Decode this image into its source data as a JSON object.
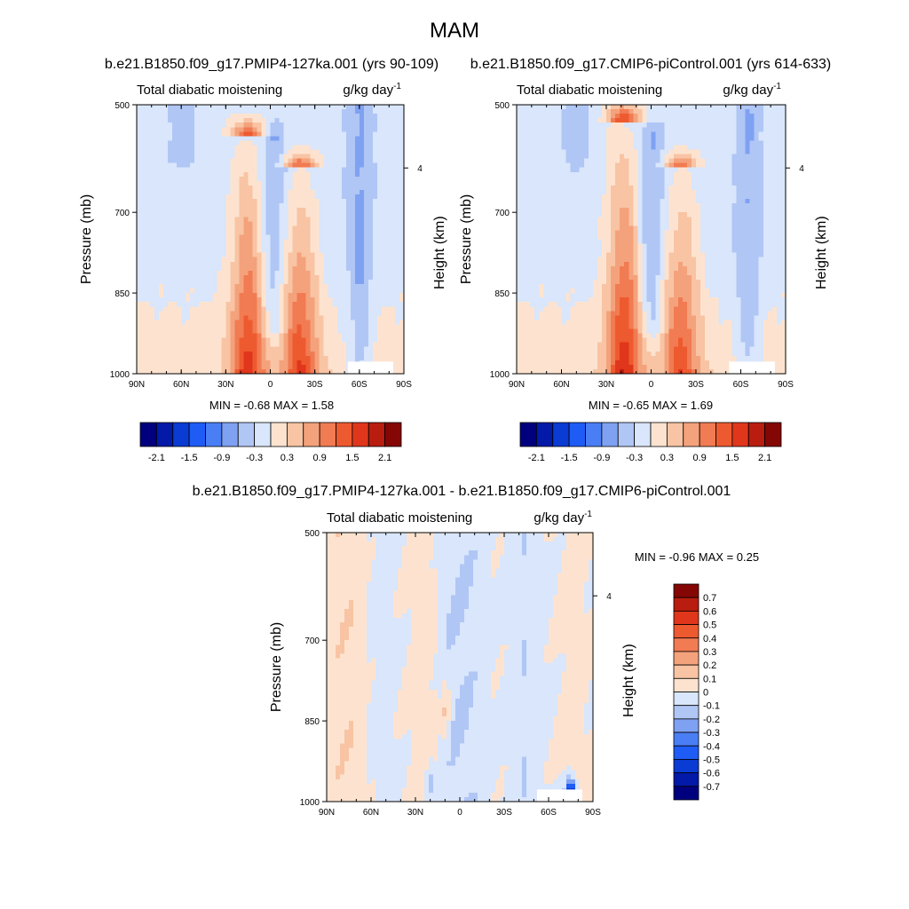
{
  "figure_title": "MAM",
  "panels": [
    {
      "run_title": "b.e21.B1850.f09_g17.PMIP4-127ka.001 (yrs 90-109)",
      "left_string": "Total diabatic moistening",
      "right_string": "g/kg day",
      "right_superscript": "-1",
      "min_max_label": "MIN =  -0.68  MAX =   1.58"
    },
    {
      "run_title": "b.e21.B1850.f09_g17.CMIP6-piControl.001 (yrs 614-633)",
      "left_string": "Total diabatic moistening",
      "right_string": "g/kg day",
      "right_superscript": "-1",
      "min_max_label": "MIN =  -0.65  MAX =   1.69"
    },
    {
      "run_title": "b.e21.B1850.f09_g17.PMIP4-127ka.001 - b.e21.B1850.f09_g17.CMIP6-piControl.001",
      "left_string": "Total diabatic moistening",
      "right_string": "g/kg day",
      "right_superscript": "-1",
      "min_max_label": "MIN =  -0.96  MAX =   0.25"
    }
  ],
  "colors": {
    "main_scale": [
      "#00007e",
      "#0319a8",
      "#0a3bd2",
      "#1e5cf5",
      "#4a7ef5",
      "#7fa1f2",
      "#b0c6f5",
      "#d9e6fb",
      "#fde3cf",
      "#f8c4a4",
      "#f4a27c",
      "#f17b52",
      "#ee5a2f",
      "#e0361b",
      "#b81d0f",
      "#850705"
    ],
    "diff_scale": [
      "#00007e",
      "#0319a8",
      "#0a3bd2",
      "#1e5cf5",
      "#4a7ef5",
      "#7fa1f2",
      "#b0c6f5",
      "#d9e6fb",
      "#fde3cf",
      "#f8c4a4",
      "#f4a27c",
      "#f17b52",
      "#ee5a2f",
      "#e0361b",
      "#b81d0f",
      "#850705"
    ]
  },
  "chart_data": [
    {
      "type": "heatmap",
      "title": "b.e21.B1850.f09_g17.PMIP4-127ka.001 (yrs 90-109)",
      "subtitle_left": "Total diabatic moistening",
      "units": "g/kg day-1",
      "xlabel": "",
      "ylabel": "Pressure (mb)",
      "ylabel_right": "Height (km)",
      "x_ticks": [
        "90N",
        "60N",
        "30N",
        "0",
        "30S",
        "60S",
        "90S"
      ],
      "y_ticks": [
        500,
        700,
        850,
        1000
      ],
      "y_right_ticks": [
        4
      ],
      "min": -0.68,
      "max": 1.58,
      "colorbar_labels": [
        "-2.1",
        "-1.5",
        "-0.9",
        "-0.3",
        "0.3",
        "0.9",
        "1.5",
        "2.1"
      ],
      "levels": [
        -2.1,
        -1.8,
        -1.5,
        -1.2,
        -0.9,
        -0.6,
        -0.3,
        0,
        0.3,
        0.6,
        0.9,
        1.2,
        1.5,
        1.8,
        2.1
      ],
      "features": [
        {
          "lat": 15,
          "p_bottom": 1000,
          "p_top": 560,
          "peak": 1.5
        },
        {
          "lat": -20,
          "p_bottom": 1000,
          "p_top": 620,
          "peak": 1.4
        },
        {
          "lat": -2,
          "p_bottom": 900,
          "p_top": 560,
          "peak": -0.45
        },
        {
          "lat": -60,
          "p_bottom": 980,
          "p_top": 500,
          "peak": -0.5
        },
        {
          "lat": 60,
          "p_bottom": 580,
          "p_top": 500,
          "peak": -0.4
        }
      ]
    },
    {
      "type": "heatmap",
      "title": "b.e21.B1850.f09_g17.CMIP6-piControl.001 (yrs 614-633)",
      "subtitle_left": "Total diabatic moistening",
      "units": "g/kg day-1",
      "xlabel": "",
      "ylabel": "Pressure (mb)",
      "ylabel_right": "Height (km)",
      "x_ticks": [
        "90N",
        "60N",
        "30N",
        "0",
        "30S",
        "60S",
        "90S"
      ],
      "y_ticks": [
        500,
        700,
        850,
        1000
      ],
      "y_right_ticks": [
        4
      ],
      "min": -0.65,
      "max": 1.69,
      "colorbar_labels": [
        "-2.1",
        "-1.5",
        "-0.9",
        "-0.3",
        "0.3",
        "0.9",
        "1.5",
        "2.1"
      ],
      "levels": [
        -2.1,
        -1.8,
        -1.5,
        -1.2,
        -0.9,
        -0.6,
        -0.3,
        0,
        0.3,
        0.6,
        0.9,
        1.2,
        1.5,
        1.8,
        2.1
      ],
      "features": [
        {
          "lat": 18,
          "p_bottom": 1000,
          "p_top": 530,
          "peak": 1.6
        },
        {
          "lat": -20,
          "p_bottom": 1000,
          "p_top": 620,
          "peak": 1.3
        },
        {
          "lat": 0,
          "p_bottom": 900,
          "p_top": 560,
          "peak": -0.5
        },
        {
          "lat": -65,
          "p_bottom": 960,
          "p_top": 500,
          "peak": -0.45
        },
        {
          "lat": 50,
          "p_bottom": 580,
          "p_top": 500,
          "peak": -0.35
        }
      ]
    },
    {
      "type": "heatmap",
      "title": "b.e21.B1850.f09_g17.PMIP4-127ka.001 - b.e21.B1850.f09_g17.CMIP6-piControl.001",
      "subtitle_left": "Total diabatic moistening",
      "units": "g/kg day-1",
      "xlabel": "",
      "ylabel": "Pressure (mb)",
      "ylabel_right": "Height (km)",
      "x_ticks": [
        "90N",
        "60N",
        "30N",
        "0",
        "30S",
        "60S",
        "90S"
      ],
      "y_ticks": [
        500,
        700,
        850,
        1000
      ],
      "y_right_ticks": [
        4
      ],
      "min": -0.96,
      "max": 0.25,
      "colorbar_labels": [
        "0.7",
        "0.6",
        "0.5",
        "0.4",
        "0.3",
        "0.2",
        "0.1",
        "0",
        "-0.1",
        "-0.2",
        "-0.3",
        "-0.4",
        "-0.5",
        "-0.6",
        "-0.7"
      ],
      "levels": [
        -0.7,
        -0.6,
        -0.5,
        -0.4,
        -0.3,
        -0.2,
        -0.1,
        0,
        0.1,
        0.2,
        0.3,
        0.4,
        0.5,
        0.6,
        0.7
      ],
      "features": [
        {
          "lat": 10,
          "p_bottom": 900,
          "p_top": 770,
          "peak": 0.15
        },
        {
          "lat": 20,
          "p_bottom": 1000,
          "p_top": 920,
          "peak": -0.15
        },
        {
          "lat": -75,
          "p_bottom": 1000,
          "p_top": 960,
          "peak": -0.7
        }
      ]
    }
  ]
}
